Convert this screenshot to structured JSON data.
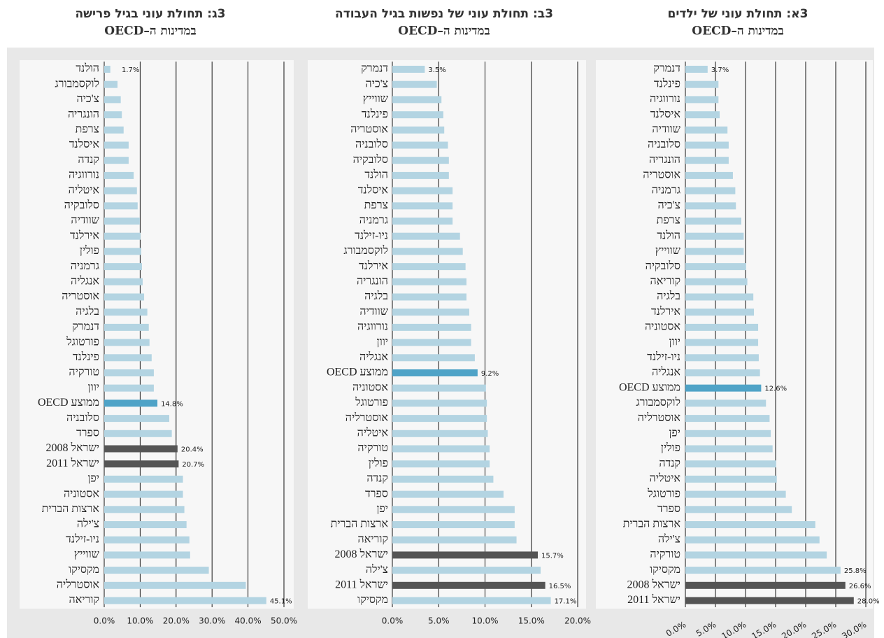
{
  "chart_data": [
    {
      "type": "barh",
      "title": "3א: תחולת עוני של ילדים",
      "subtitle": "במדינות ה–OECD",
      "categories": [
        "דנמרק",
        "פינלנד",
        "נורווגיה",
        "איסלנד",
        "שוודיה",
        "סלובניה",
        "הונגריה",
        "אוסטריה",
        "גרמניה",
        "צ'כיה",
        "צרפת",
        "הולנד",
        "שווייץ",
        "סלובקיה",
        "קוריאה",
        "בלגיה",
        "אירלנד",
        "אסטוניה",
        "יוון",
        "ניו-זילנד",
        "אנגליה",
        "ממוצע OECD",
        "לוקסמבורג",
        "אוסטרליה",
        "יפן",
        "פולין",
        "קנדה",
        "איטליה",
        "פורטוגל",
        "ספרד",
        "ארצות הברית",
        "צ'ילה",
        "טורקיה",
        "מקסיקו",
        "ישראל 2008",
        "ישראל 2011"
      ],
      "values": [
        3.7,
        5.5,
        5.5,
        5.7,
        7.0,
        7.2,
        7.2,
        7.9,
        8.3,
        8.4,
        9.3,
        9.7,
        9.7,
        10.1,
        10.3,
        11.3,
        11.4,
        12.1,
        12.1,
        12.2,
        12.4,
        12.6,
        13.4,
        14.0,
        14.2,
        14.5,
        15.1,
        15.2,
        16.7,
        17.7,
        21.6,
        22.3,
        23.5,
        25.8,
        26.6,
        28.0
      ],
      "value_labels": [
        "3.7%",
        null,
        null,
        null,
        null,
        null,
        null,
        null,
        null,
        null,
        null,
        null,
        null,
        null,
        null,
        null,
        null,
        null,
        null,
        null,
        null,
        "12.6%",
        null,
        null,
        null,
        null,
        null,
        null,
        null,
        null,
        null,
        null,
        null,
        "25.8%",
        "26.6%",
        "28.0%"
      ],
      "colors": [
        "#b3d4e2",
        "#b3d4e2",
        "#b3d4e2",
        "#b3d4e2",
        "#b3d4e2",
        "#b3d4e2",
        "#b3d4e2",
        "#b3d4e2",
        "#b3d4e2",
        "#b3d4e2",
        "#b3d4e2",
        "#b3d4e2",
        "#b3d4e2",
        "#b3d4e2",
        "#b3d4e2",
        "#b3d4e2",
        "#b3d4e2",
        "#b3d4e2",
        "#b3d4e2",
        "#b3d4e2",
        "#b3d4e2",
        "#4fa3c7",
        "#b3d4e2",
        "#b3d4e2",
        "#b3d4e2",
        "#b3d4e2",
        "#b3d4e2",
        "#b3d4e2",
        "#b3d4e2",
        "#b3d4e2",
        "#b3d4e2",
        "#b3d4e2",
        "#b3d4e2",
        "#b3d4e2",
        "#555555",
        "#555555"
      ],
      "xlim": [
        0,
        30
      ],
      "xticks": [
        {
          "value": 0,
          "label": "0.0%"
        },
        {
          "value": 5,
          "label": "5.0%"
        },
        {
          "value": 10,
          "label": "10.0%"
        },
        {
          "value": 15,
          "label": "15.0%"
        },
        {
          "value": 20,
          "label": "20.0%"
        },
        {
          "value": 25,
          "label": "25.0%"
        },
        {
          "value": 30,
          "label": "30.0%"
        }
      ],
      "xtick_rotation": -30,
      "grid": true
    },
    {
      "type": "barh",
      "title": "3ב: תחולת עוני של נפשות בגיל העבודה",
      "subtitle": "במדינות ה–OECD",
      "categories": [
        "דנמרק",
        "צ'כיה",
        "שווייץ",
        "פינלנד",
        "אוסטריה",
        "סלובניה",
        "סלובקיה",
        "הולנד",
        "איסלנד",
        "צרפת",
        "גרמניה",
        "ניו-זילנד",
        "לוקסמבורג",
        "אירלנד",
        "הונגריה",
        "בלגיה",
        "שוודיה",
        "נורווגיה",
        "יוון",
        "אנגליה",
        "ממוצע OECD",
        "אסטוניה",
        "פורטוגל",
        "אוסטרליה",
        "איטליה",
        "טורקיה",
        "פולין",
        "קנדה",
        "ספרד",
        "יפן",
        "ארצות הברית",
        "קוריאה",
        "ישראל 2008",
        "צ'ילה",
        "ישראל 2011",
        "מקסיקו"
      ],
      "values": [
        3.5,
        4.8,
        5.3,
        5.5,
        5.6,
        6.0,
        6.1,
        6.1,
        6.5,
        6.5,
        6.5,
        7.3,
        7.6,
        7.9,
        8.0,
        8.0,
        8.3,
        8.5,
        8.5,
        8.9,
        9.2,
        10.1,
        10.2,
        10.2,
        10.3,
        10.5,
        10.5,
        10.9,
        12.0,
        13.2,
        13.2,
        13.4,
        15.7,
        16.0,
        16.5,
        17.1
      ],
      "value_labels": [
        "3.5%",
        null,
        null,
        null,
        null,
        null,
        null,
        null,
        null,
        null,
        null,
        null,
        null,
        null,
        null,
        null,
        null,
        null,
        null,
        null,
        "9.2%",
        null,
        null,
        null,
        null,
        null,
        null,
        null,
        null,
        null,
        null,
        null,
        "15.7%",
        null,
        "16.5%",
        "17.1%"
      ],
      "colors": [
        "#b3d4e2",
        "#b3d4e2",
        "#b3d4e2",
        "#b3d4e2",
        "#b3d4e2",
        "#b3d4e2",
        "#b3d4e2",
        "#b3d4e2",
        "#b3d4e2",
        "#b3d4e2",
        "#b3d4e2",
        "#b3d4e2",
        "#b3d4e2",
        "#b3d4e2",
        "#b3d4e2",
        "#b3d4e2",
        "#b3d4e2",
        "#b3d4e2",
        "#b3d4e2",
        "#b3d4e2",
        "#4fa3c7",
        "#b3d4e2",
        "#b3d4e2",
        "#b3d4e2",
        "#b3d4e2",
        "#b3d4e2",
        "#b3d4e2",
        "#b3d4e2",
        "#b3d4e2",
        "#b3d4e2",
        "#b3d4e2",
        "#b3d4e2",
        "#555555",
        "#b3d4e2",
        "#555555",
        "#b3d4e2"
      ],
      "xlim": [
        0,
        20
      ],
      "xticks": [
        {
          "value": 0,
          "label": "0.0%"
        },
        {
          "value": 5,
          "label": "5.0%"
        },
        {
          "value": 10,
          "label": "10.0%"
        },
        {
          "value": 15,
          "label": "15.0%"
        },
        {
          "value": 20,
          "label": "20.0%"
        }
      ],
      "xtick_rotation": 0,
      "grid": true
    },
    {
      "type": "barh",
      "title": "3ג: תחולת עוני בגיל פרישה",
      "subtitle": "במדינות ה–OECD",
      "categories": [
        "הולנד",
        "לוקסמבורג",
        "צ'כיה",
        "הונגריה",
        "צרפת",
        "איסלנד",
        "קנדה",
        "נורווגיה",
        "איטליה",
        "סלובקיה",
        "שוודיה",
        "אירלנד",
        "פולין",
        "גרמניה",
        "אנגליה",
        "אוסטריה",
        "בלגיה",
        "דנמרק",
        "פורטוגל",
        "פינלנד",
        "טורקיה",
        "יוון",
        "ממוצע OECD",
        "סלובניה",
        "ספרד",
        "ישראל 2008",
        "ישראל 2011",
        "יפן",
        "אסטוניה",
        "ארצות הברית",
        "צ'ילה",
        "ניו-זילנד",
        "שווייץ",
        "מקסיקו",
        "אוסטרליה",
        "קוריאה"
      ],
      "values": [
        1.7,
        3.7,
        4.6,
        4.9,
        5.4,
        6.8,
        6.8,
        8.2,
        9.1,
        9.3,
        9.9,
        10.1,
        10.3,
        10.5,
        10.7,
        11.1,
        12.0,
        12.4,
        12.6,
        13.2,
        13.8,
        13.8,
        14.8,
        18.1,
        18.8,
        20.4,
        20.7,
        21.9,
        21.9,
        22.3,
        22.9,
        23.7,
        23.9,
        29.1,
        39.4,
        45.1
      ],
      "value_labels": [
        "1.7%",
        null,
        null,
        null,
        null,
        null,
        null,
        null,
        null,
        null,
        null,
        null,
        null,
        null,
        null,
        null,
        null,
        null,
        null,
        null,
        null,
        null,
        "14.8%",
        null,
        null,
        "20.4%",
        "20.7%",
        null,
        null,
        null,
        null,
        null,
        null,
        null,
        null,
        "45.1%"
      ],
      "colors": [
        "#b3d4e2",
        "#b3d4e2",
        "#b3d4e2",
        "#b3d4e2",
        "#b3d4e2",
        "#b3d4e2",
        "#b3d4e2",
        "#b3d4e2",
        "#b3d4e2",
        "#b3d4e2",
        "#b3d4e2",
        "#b3d4e2",
        "#b3d4e2",
        "#b3d4e2",
        "#b3d4e2",
        "#b3d4e2",
        "#b3d4e2",
        "#b3d4e2",
        "#b3d4e2",
        "#b3d4e2",
        "#b3d4e2",
        "#b3d4e2",
        "#4fa3c7",
        "#b3d4e2",
        "#b3d4e2",
        "#555555",
        "#555555",
        "#b3d4e2",
        "#b3d4e2",
        "#b3d4e2",
        "#b3d4e2",
        "#b3d4e2",
        "#b3d4e2",
        "#b3d4e2",
        "#b3d4e2",
        "#b3d4e2"
      ],
      "xlim": [
        0,
        50
      ],
      "xticks": [
        {
          "value": 0,
          "label": "0.0%"
        },
        {
          "value": 10,
          "label": "10.0%"
        },
        {
          "value": 20,
          "label": "20.0%"
        },
        {
          "value": 30,
          "label": "30.0%"
        },
        {
          "value": 40,
          "label": "40.0%"
        },
        {
          "value": 50,
          "label": "50.0%"
        }
      ],
      "xtick_rotation": 0,
      "grid": true
    }
  ]
}
